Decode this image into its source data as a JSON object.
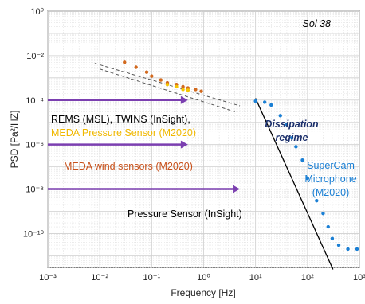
{
  "chart_data": {
    "type": "scatter",
    "xlabel": "Frequency [Hz]",
    "ylabel": "PSD [Pa²/HZ]",
    "xscale": "log",
    "yscale": "log",
    "xlim": [
      0.001,
      1000
    ],
    "ylim": [
      3e-12,
      1
    ],
    "grid": true,
    "x_ticks": [
      "10⁻³",
      "10⁻²",
      "10⁻¹",
      "10⁰",
      "10¹",
      "10²",
      "10³"
    ],
    "y_ticks": [
      "10⁰",
      "10⁻²",
      "10⁻⁴",
      "10⁻⁶",
      "10⁻⁸",
      "10⁻¹⁰"
    ],
    "annotations": {
      "sol": "Sol 38",
      "dissipation": [
        "Dissipation",
        "regime"
      ],
      "supercam": [
        "SuperCam",
        "Microphone",
        "(M2020)"
      ],
      "line1": "REMS (MSL), TWINS (InSight),",
      "line2": "MEDA Pressure Sensor (M2020)",
      "line3": "MEDA wind sensors (M2020)",
      "line4": "Pressure Sensor (InSight)"
    },
    "arrows": [
      {
        "from_x": 0.001,
        "to_x": 0.5,
        "y": 0.0001
      },
      {
        "from_x": 0.001,
        "to_x": 0.5,
        "y": 1e-06
      },
      {
        "from_x": 0.001,
        "to_x": 5,
        "y": 1e-08
      }
    ],
    "series": [
      {
        "type": "scatter",
        "color": "#d2691e",
        "points": [
          [
            0.03,
            0.005
          ],
          [
            0.05,
            0.003
          ],
          [
            0.08,
            0.0018
          ],
          [
            0.1,
            0.0012
          ],
          [
            0.15,
            0.0008
          ],
          [
            0.2,
            0.0006
          ],
          [
            0.3,
            0.0005
          ],
          [
            0.4,
            0.0004
          ],
          [
            0.5,
            0.00035
          ],
          [
            0.7,
            0.0003
          ],
          [
            0.9,
            0.00025
          ]
        ]
      },
      {
        "type": "scatter",
        "color": "#f5c400",
        "points": [
          [
            0.2,
            0.0005
          ],
          [
            0.3,
            0.0004
          ],
          [
            0.4,
            0.0003
          ],
          [
            0.5,
            0.00028
          ]
        ]
      },
      {
        "type": "scatter",
        "color": "#1a7fd4",
        "points": [
          [
            10,
            9e-05
          ],
          [
            15,
            8e-05
          ],
          [
            20,
            6e-05
          ],
          [
            30,
            2e-05
          ],
          [
            40,
            8e-06
          ],
          [
            50,
            2e-06
          ],
          [
            60,
            8e-07
          ],
          [
            80,
            2e-07
          ],
          [
            100,
            3e-08
          ],
          [
            150,
            3e-09
          ],
          [
            200,
            8e-10
          ],
          [
            250,
            2e-10
          ],
          [
            300,
            6e-11
          ],
          [
            400,
            3e-11
          ],
          [
            600,
            2e-11
          ],
          [
            900,
            2e-11
          ]
        ]
      }
    ],
    "fit_lines": [
      {
        "color": "#555555",
        "dash": true,
        "points": [
          [
            0.008,
            0.0045
          ],
          [
            5,
            5.5e-05
          ]
        ]
      },
      {
        "color": "#555555",
        "dash": true,
        "points": [
          [
            0.01,
            0.0025
          ],
          [
            4,
            3e-05
          ]
        ]
      },
      {
        "color": "#000000",
        "dash": false,
        "points": [
          [
            10,
            0.00012
          ],
          [
            310,
            2.45e-12
          ]
        ]
      }
    ]
  }
}
